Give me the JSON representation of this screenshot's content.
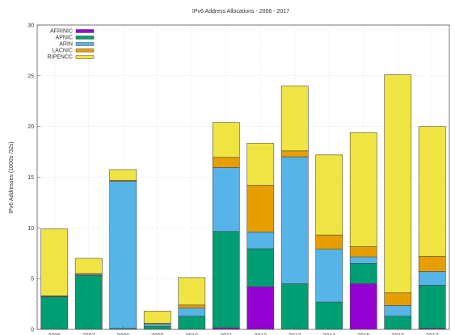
{
  "chart_data": {
    "type": "bar",
    "stacked": true,
    "title": "IPv6 Address Allocations - 2006 - 2017",
    "ylabel": "IPv6 Addresses (1000s /32s)",
    "xlabel": "",
    "ylim": [
      0,
      30
    ],
    "yticks": [
      "0",
      "5",
      "10",
      "15",
      "20",
      "25",
      "30"
    ],
    "grid": true,
    "legend_position": "top-left",
    "categories": [
      "2006",
      "2007",
      "2008",
      "2009",
      "2010",
      "2011",
      "2012",
      "2013",
      "2014",
      "2015",
      "2016",
      "2017"
    ],
    "series": [
      {
        "name": "AFRINIC",
        "color": "#9400d3",
        "values": [
          0.0,
          0.0,
          0.0,
          0.0,
          0.0,
          0.15,
          4.2,
          0.0,
          0.0,
          4.5,
          0.0,
          0.1
        ]
      },
      {
        "name": "APNIC",
        "color": "#009e73",
        "values": [
          3.2,
          5.3,
          0.1,
          0.3,
          1.3,
          9.5,
          3.75,
          4.5,
          2.7,
          2.0,
          1.3,
          4.25
        ]
      },
      {
        "name": "ARIN",
        "color": "#56b4e9",
        "values": [
          0.05,
          0.1,
          14.5,
          0.2,
          0.8,
          6.3,
          1.65,
          12.5,
          5.2,
          0.65,
          1.05,
          1.35
        ]
      },
      {
        "name": "LACNIC",
        "color": "#e69f00",
        "values": [
          0.05,
          0.1,
          0.1,
          0.1,
          0.3,
          1.0,
          4.6,
          0.6,
          1.4,
          1.0,
          1.25,
          1.5
        ]
      },
      {
        "name": "RIPENCC",
        "color": "#f0e442",
        "values": [
          6.6,
          1.5,
          1.05,
          1.2,
          2.7,
          3.45,
          4.15,
          6.4,
          7.9,
          11.25,
          21.5,
          12.8
        ]
      }
    ]
  }
}
